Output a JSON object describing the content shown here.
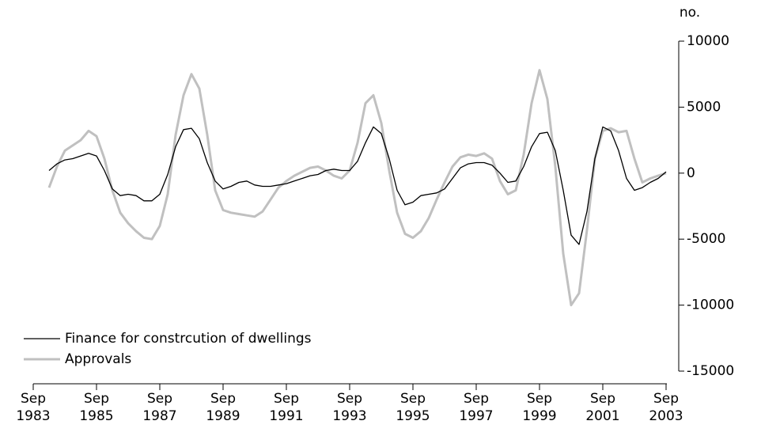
{
  "chart_data": {
    "type": "line",
    "y_axis_label": "no.",
    "categories": [
      "Sep 1983",
      null,
      null,
      null,
      null,
      null,
      null,
      null,
      "Sep 1985",
      null,
      null,
      null,
      null,
      null,
      null,
      null,
      "Sep 1987",
      null,
      null,
      null,
      null,
      null,
      null,
      null,
      "Sep 1989",
      null,
      null,
      null,
      null,
      null,
      null,
      null,
      "Sep 1991",
      null,
      null,
      null,
      null,
      null,
      null,
      null,
      "Sep 1993",
      null,
      null,
      null,
      null,
      null,
      null,
      null,
      "Sep 1995",
      null,
      null,
      null,
      null,
      null,
      null,
      null,
      "Sep 1997",
      null,
      null,
      null,
      null,
      null,
      null,
      null,
      "Sep 1999",
      null,
      null,
      null,
      null,
      null,
      null,
      null,
      "Sep 2001",
      null,
      null,
      null,
      null,
      null,
      null,
      null,
      "Sep 2003"
    ],
    "series": [
      {
        "name": "Finance for constrcution of dwellings",
        "color": "#000000",
        "values": [
          null,
          null,
          200,
          700,
          1000,
          1100,
          1300,
          1500,
          1300,
          200,
          -1200,
          -1700,
          -1600,
          -1700,
          -2100,
          -2100,
          -1600,
          -100,
          2000,
          3300,
          3400,
          2600,
          800,
          -600,
          -1200,
          -1000,
          -700,
          -600,
          -900,
          -1000,
          -1000,
          -900,
          -800,
          -600,
          -400,
          -200,
          -100,
          200,
          300,
          200,
          200,
          900,
          2300,
          3500,
          3000,
          1100,
          -1300,
          -2400,
          -2200,
          -1700,
          -1600,
          -1500,
          -1200,
          -400,
          400,
          700,
          800,
          800,
          600,
          0,
          -700,
          -600,
          500,
          2000,
          3000,
          3100,
          1700,
          -1300,
          -4700,
          -5400,
          -2900,
          1100,
          3500,
          3200,
          1700,
          -400,
          -1300,
          -1100,
          -700,
          -400,
          100
        ]
      },
      {
        "name": "Approvals",
        "color": "#c0c0c0",
        "values": [
          null,
          null,
          -1100,
          500,
          1700,
          2100,
          2500,
          3200,
          2800,
          1100,
          -1300,
          -3000,
          -3800,
          -4400,
          -4900,
          -5000,
          -4000,
          -1600,
          2900,
          5900,
          7500,
          6400,
          2900,
          -1300,
          -2800,
          -3000,
          -3100,
          -3200,
          -3300,
          -2900,
          -2000,
          -1100,
          -600,
          -200,
          100,
          400,
          500,
          200,
          -200,
          -400,
          200,
          2300,
          5300,
          5900,
          3800,
          200,
          -3000,
          -4600,
          -4900,
          -4400,
          -3400,
          -2000,
          -700,
          500,
          1200,
          1400,
          1300,
          1500,
          1100,
          -600,
          -1600,
          -1300,
          1400,
          5300,
          7800,
          5600,
          500,
          -6100,
          -10000,
          -9100,
          -4300,
          1100,
          3200,
          3400,
          3100,
          3200,
          1100,
          -700,
          -400,
          -200,
          0
        ]
      }
    ],
    "ylim": [
      -15000,
      10000
    ],
    "yticks": [
      10000,
      5000,
      0,
      -5000,
      -10000,
      -15000
    ],
    "grid": false,
    "legend_position": "lower left"
  }
}
